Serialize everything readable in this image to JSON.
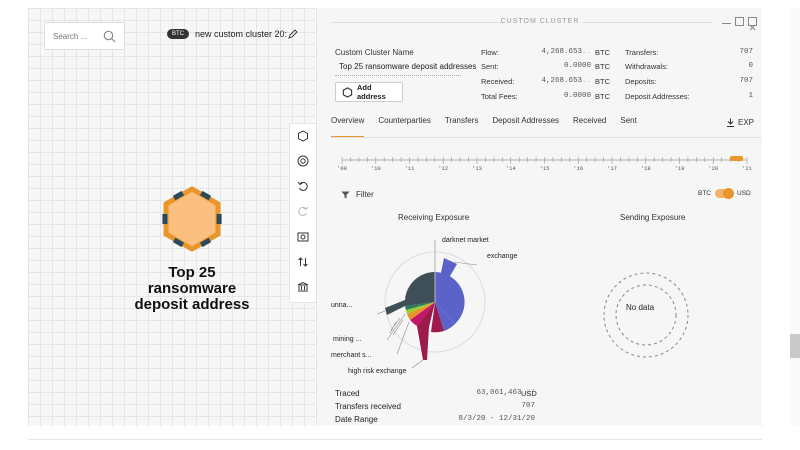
{
  "search": {
    "placeholder": "Search ..."
  },
  "cluster": {
    "currency_badge": "BTC",
    "title": "new custom cluster 20:"
  },
  "node": {
    "label": "Top 25 ransomware deposit address"
  },
  "panel": {
    "header": "CUSTOM CLUSTER",
    "name_label": "Custom Cluster Name",
    "name_value": "Top 25 ransomware deposit addresses",
    "add_button": "Add address",
    "stats_left": [
      {
        "label": "Flow:",
        "value": "4,268.653",
        "dim": "..",
        "unit": "BTC"
      },
      {
        "label": "Sent:",
        "value": "0.0000",
        "dim": "",
        "unit": "BTC"
      },
      {
        "label": "Received:",
        "value": "4,268.653",
        "dim": "..",
        "unit": "BTC"
      },
      {
        "label": "Total Fees:",
        "value": "0.0000",
        "dim": "",
        "unit": "BTC"
      }
    ],
    "stats_right": [
      {
        "label": "Transfers:",
        "value": "707"
      },
      {
        "label": "Withdrawals:",
        "value": "0"
      },
      {
        "label": "Deposits:",
        "value": "707"
      },
      {
        "label": "Deposit Addresses:",
        "value": "1"
      }
    ],
    "tabs": [
      "Overview",
      "Counterparties",
      "Transfers",
      "Deposit Addresses",
      "Received",
      "Sent"
    ],
    "active_tab": "Overview",
    "export_label": "EXP",
    "timeline_years": [
      "'09",
      "'10",
      "'11",
      "'12",
      "'13",
      "'14",
      "'15",
      "'16",
      "'17",
      "'18",
      "'19",
      "'20",
      "'21"
    ],
    "filter_label": "Filter",
    "toggle_left": "BTC",
    "toggle_right": "USD",
    "receiving_title": "Receiving Exposure",
    "sending_title": "Sending Exposure",
    "no_data": "No data",
    "pie_labels": {
      "darknet": "darknet market",
      "exchange": "exchange",
      "unnamed": "unna...",
      "mining": "mining ...",
      "merchant": "merchant s...",
      "high_risk": "high risk exchange"
    },
    "summary": [
      {
        "label": "Traced",
        "value": "63,061,463",
        "dim": ".27",
        "unit": "USD"
      },
      {
        "label": "Transfers received",
        "value": "707",
        "dim": "",
        "unit": ""
      },
      {
        "label": "Date Range",
        "value": "8/3/20 - 12/31/20",
        "dim": "",
        "unit": ""
      }
    ]
  },
  "colors": {
    "accent": "#e8962c",
    "exchange": "#5b63c8",
    "unnamed": "#3e4f57",
    "high_risk": "#9c1b4c"
  }
}
